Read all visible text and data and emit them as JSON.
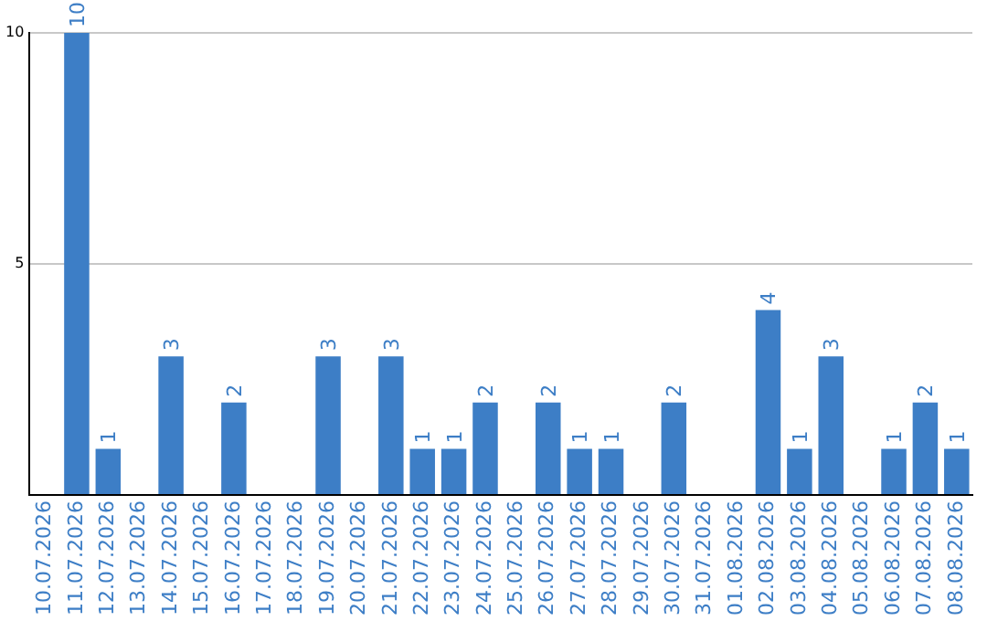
{
  "chart_data": {
    "type": "bar",
    "categories": [
      "10.07.2026",
      "11.07.2026",
      "12.07.2026",
      "13.07.2026",
      "14.07.2026",
      "15.07.2026",
      "16.07.2026",
      "17.07.2026",
      "18.07.2026",
      "19.07.2026",
      "20.07.2026",
      "21.07.2026",
      "22.07.2026",
      "23.07.2026",
      "24.07.2026",
      "25.07.2026",
      "26.07.2026",
      "27.07.2026",
      "28.07.2026",
      "29.07.2026",
      "30.07.2026",
      "31.07.2026",
      "01.08.2026",
      "02.08.2026",
      "03.08.2026",
      "04.08.2026",
      "05.08.2026",
      "06.08.2026",
      "07.08.2026",
      "08.08.2026"
    ],
    "values": [
      0,
      10,
      1,
      0,
      3,
      0,
      2,
      0,
      0,
      3,
      0,
      3,
      1,
      1,
      2,
      0,
      2,
      1,
      1,
      0,
      2,
      0,
      0,
      4,
      1,
      3,
      0,
      1,
      2,
      1
    ],
    "value_labels": [
      null,
      "10",
      "1",
      null,
      "3",
      null,
      "2",
      null,
      null,
      "3",
      null,
      "3",
      "1",
      "1",
      "2",
      null,
      "2",
      "1",
      "1",
      null,
      "2",
      null,
      null,
      "4",
      "1",
      "3",
      null,
      "1",
      "2",
      "1"
    ],
    "color": "#3d7ec6",
    "ylim": [
      0,
      10
    ],
    "yticks": [
      {
        "value": 0,
        "label": null
      },
      5,
      10
    ],
    "grid": "y"
  }
}
